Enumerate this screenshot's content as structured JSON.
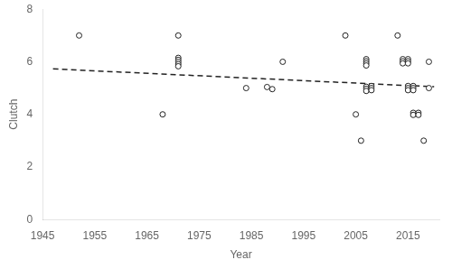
{
  "chart_data": {
    "type": "scatter",
    "xlabel": "Year",
    "ylabel": "Clutch",
    "xlim": [
      1945,
      2021
    ],
    "ylim": [
      0,
      8
    ],
    "xticks": [
      1945,
      1955,
      1965,
      1975,
      1985,
      1995,
      2005,
      2015
    ],
    "yticks": [
      0,
      2,
      4,
      6,
      8
    ],
    "grid": false,
    "series": [
      {
        "type": "scatter",
        "marker": "circle",
        "color": "#222222",
        "x": [
          1952,
          1971,
          1971,
          1971,
          1971,
          1971,
          1971,
          1968,
          1984,
          1988,
          1989,
          1991,
          2003,
          2005,
          2006,
          2007,
          2007,
          2007,
          2007,
          2007,
          2007,
          2007,
          2008,
          2008,
          2008,
          2013,
          2014,
          2014,
          2014,
          2015,
          2015,
          2015,
          2015,
          2015,
          2015,
          2016,
          2016,
          2016,
          2016,
          2016,
          2017,
          2017,
          2018,
          2019,
          2019
        ],
        "values": [
          7,
          7,
          6.15,
          6.07,
          5.99,
          5.91,
          5.83,
          4,
          5,
          5.04,
          4.96,
          6,
          7,
          4,
          3,
          6.1,
          6.02,
          5.94,
          5.86,
          5.05,
          4.97,
          4.89,
          5.08,
          5.0,
          4.92,
          7,
          6.1,
          6.02,
          5.94,
          6.1,
          6.02,
          5.94,
          5.08,
          5.0,
          4.92,
          5.08,
          5.0,
          4.92,
          4.06,
          3.98,
          4.06,
          3.98,
          3,
          6,
          5
        ]
      },
      {
        "type": "line",
        "line_style": "dashed",
        "color": "#222222",
        "x": [
          1947,
          2020
        ],
        "values": [
          5.73,
          5.05
        ]
      }
    ]
  }
}
